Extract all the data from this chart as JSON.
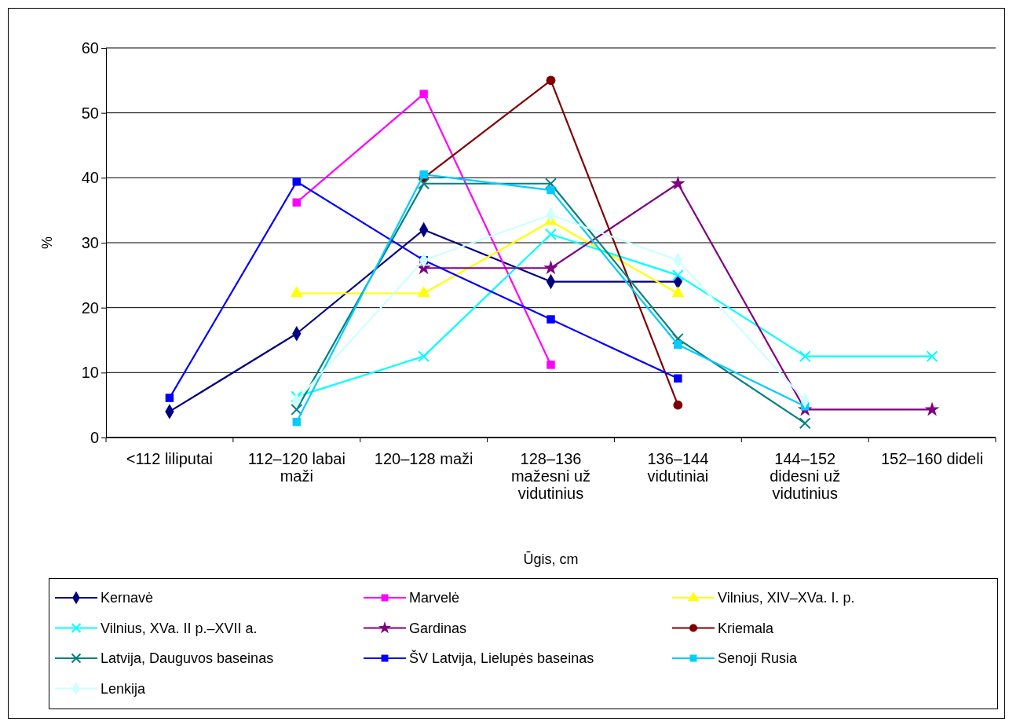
{
  "chart_data": {
    "type": "line",
    "xlabel": "Ūgis, cm",
    "ylabel": "%",
    "categories": [
      "<112 liliputai",
      "112–120 labai maži",
      "120–128 maži",
      "128–136 mažesni už vidutinius",
      "136–144 vidutiniai",
      "144–152 didesni už vidutinius",
      "152–160 dideli"
    ],
    "ylim": [
      0,
      60
    ],
    "yticks": [
      0,
      10,
      20,
      30,
      40,
      50,
      60
    ],
    "grid": "y",
    "legend": "bottom",
    "series": [
      {
        "name": "Kernavė",
        "color": "#000080",
        "marker": "diamond",
        "values": [
          4,
          16,
          32,
          24,
          24,
          null,
          null
        ]
      },
      {
        "name": "Marvelė",
        "color": "#ff00ff",
        "marker": "square",
        "values": [
          null,
          36.2,
          52.9,
          11.2,
          null,
          null,
          null
        ]
      },
      {
        "name": "Vilnius, XIV–XVa. I. p.",
        "color": "#ffff00",
        "marker": "triangle",
        "values": [
          null,
          22.2,
          22.2,
          33.3,
          22.2,
          null,
          null
        ]
      },
      {
        "name": "Vilnius, XVa. II p.–XVII a.",
        "color": "#00ffff",
        "marker": "cross",
        "values": [
          null,
          6.3,
          12.5,
          31.3,
          25,
          12.5,
          12.5
        ]
      },
      {
        "name": "Gardinas",
        "color": "#800080",
        "marker": "star",
        "values": [
          null,
          null,
          26.1,
          26.1,
          39.1,
          4.3,
          4.3
        ]
      },
      {
        "name": "Kriemala",
        "color": "#800000",
        "marker": "circle",
        "values": [
          null,
          null,
          40,
          55,
          5,
          null,
          null
        ]
      },
      {
        "name": "Latvija, Dauguvos baseinas",
        "color": "#008080",
        "marker": "cross",
        "values": [
          null,
          4.3,
          39.1,
          39.1,
          15.2,
          2.2,
          null
        ]
      },
      {
        "name": "ŠV Latvija, Lielupės baseinas",
        "color": "#0000ff",
        "marker": "square",
        "values": [
          6.1,
          39.4,
          27.3,
          18.2,
          9.1,
          null,
          null
        ]
      },
      {
        "name": "Senoji Rusia",
        "color": "#00ccff",
        "marker": "square",
        "values": [
          null,
          2.4,
          40.5,
          38.1,
          14.3,
          4.8,
          null
        ]
      },
      {
        "name": "Lenkija",
        "color": "#ccffff",
        "marker": "diamond",
        "values": [
          null,
          5.7,
          27.3,
          34.3,
          27.3,
          5.7,
          null
        ]
      }
    ]
  }
}
